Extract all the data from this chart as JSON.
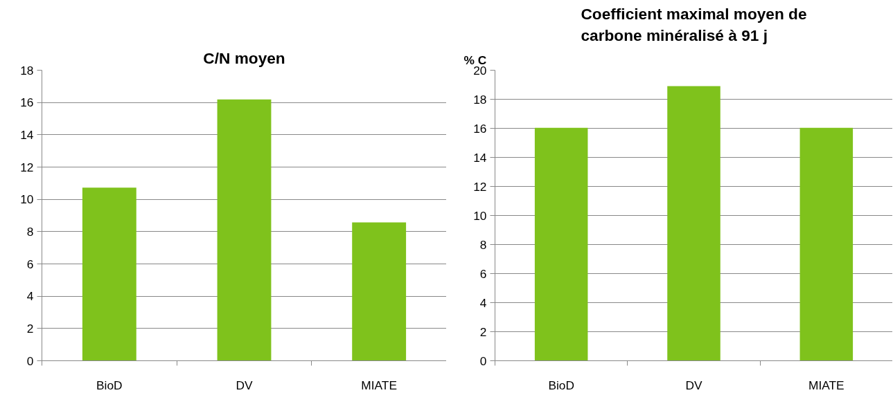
{
  "chart_data": [
    {
      "type": "bar",
      "title": "C/N moyen",
      "categories": [
        "BioD",
        "DV",
        "MIATE"
      ],
      "values": [
        10.72,
        16.19,
        8.57
      ],
      "color": "#7fc21c",
      "ylim": [
        0,
        18
      ],
      "yticks": [
        0,
        2,
        4,
        6,
        8,
        10,
        12,
        14,
        16,
        18
      ],
      "grid": "y"
    },
    {
      "type": "bar",
      "title": "Coefficient maximal moyen de\ncarbone minéralisé à 91 j",
      "ylabel": "% C",
      "categories": [
        "BioD",
        "DV",
        "MIATE"
      ],
      "values": [
        16.03,
        18.91,
        16.03
      ],
      "color": "#7fc21c",
      "ylim": [
        0,
        20
      ],
      "yticks": [
        0,
        2,
        4,
        6,
        8,
        10,
        12,
        14,
        16,
        18,
        20
      ],
      "grid": "y"
    }
  ]
}
